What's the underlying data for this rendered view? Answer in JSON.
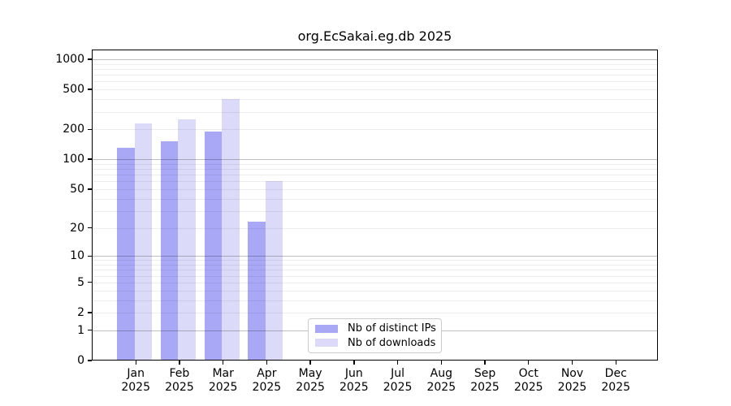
{
  "figure": {
    "background": "#ffffff"
  },
  "chart_data": {
    "type": "bar",
    "title": "org.EcSakai.eg.db 2025",
    "year_label": "2025",
    "months": [
      "Jan",
      "Feb",
      "Mar",
      "Apr",
      "May",
      "Jun",
      "Jul",
      "Aug",
      "Sep",
      "Oct",
      "Nov",
      "Dec"
    ],
    "categories": [
      "Jan 2025",
      "Feb 2025",
      "Mar 2025",
      "Apr 2025",
      "May 2025",
      "Jun 2025",
      "Jul 2025",
      "Aug 2025",
      "Sep 2025",
      "Oct 2025",
      "Nov 2025",
      "Dec 2025"
    ],
    "series": [
      {
        "name": "Nb of distinct IPs",
        "color": "#a8a8f6",
        "values": [
          130,
          153,
          190,
          23,
          0,
          0,
          0,
          0,
          0,
          0,
          0,
          0
        ]
      },
      {
        "name": "Nb of downloads",
        "color": "#dbdbf9",
        "values": [
          230,
          252,
          400,
          60,
          0,
          0,
          0,
          0,
          0,
          0,
          0,
          0
        ]
      }
    ],
    "yscale": "log10(1+x)",
    "ylim": [
      0,
      1000
    ],
    "yticks": [
      0,
      1,
      2,
      5,
      10,
      20,
      50,
      100,
      200,
      500,
      1000
    ],
    "major_gridlines": [
      1,
      10,
      100,
      1000
    ],
    "minor_gridlines": [
      2,
      3,
      4,
      5,
      6,
      7,
      8,
      9,
      20,
      30,
      40,
      50,
      60,
      70,
      80,
      90,
      200,
      300,
      400,
      500,
      600,
      700,
      800,
      900
    ],
    "grid": true,
    "legend_position": "bottom-center"
  },
  "colors": {
    "axis": "#000000",
    "major_grid": "rgba(0,0,0,0.25)",
    "minor_grid": "rgba(0,0,0,0.07)",
    "legend_border": "#cccccc",
    "text": "#000000"
  }
}
